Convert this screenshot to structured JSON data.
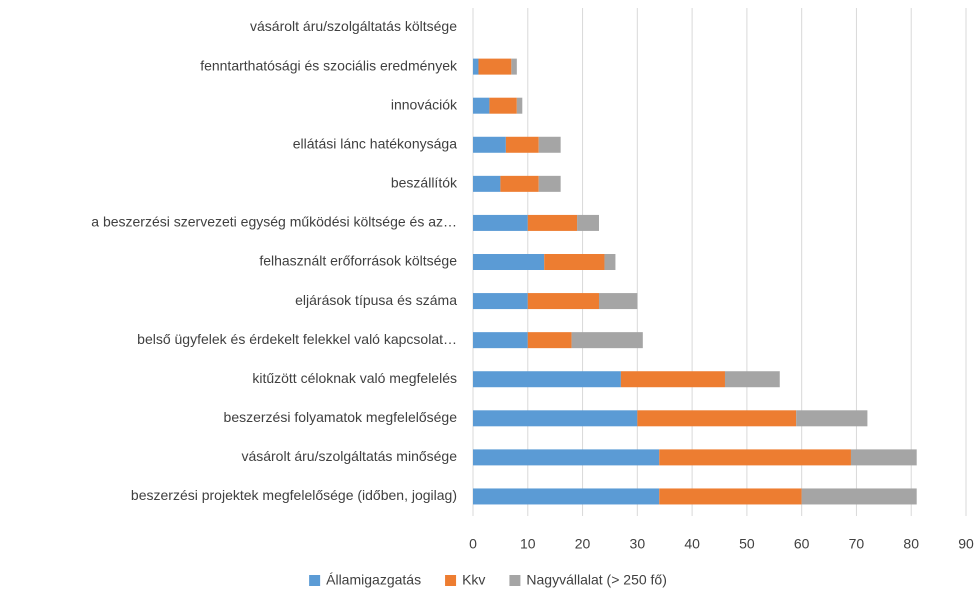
{
  "chart_data": {
    "type": "stacked_barh",
    "categories": [
      "vásárolt áru/szolgáltatás költsége",
      "fenntarthatósági és szociális eredmények",
      "innovációk",
      "ellátási lánc hatékonysága",
      "beszállítók",
      "a beszerzési szervezeti egység működési költsége és az…",
      "felhasznált erőforrások költsége",
      "eljárások típusa és száma",
      "belső ügyfelek és érdekelt felekkel való kapcsolat…",
      "kitűzött céloknak való megfelelés",
      "beszerzési folyamatok megfelelősége",
      "vásárolt áru/szolgáltatás minősége",
      "beszerzési projektek megfelelősége (időben, jogilag)"
    ],
    "series": [
      {
        "name": "Államigazgatás",
        "color": "#5b9bd5",
        "values": [
          0,
          1,
          3,
          6,
          5,
          10,
          13,
          10,
          10,
          27,
          30,
          34,
          34
        ]
      },
      {
        "name": "Kkv",
        "color": "#ed7d31",
        "values": [
          0,
          6,
          5,
          6,
          7,
          9,
          11,
          13,
          8,
          19,
          29,
          35,
          26
        ]
      },
      {
        "name": "Nagyvállalat (> 250 fő)",
        "color": "#a5a5a5",
        "values": [
          0,
          1,
          1,
          4,
          4,
          4,
          2,
          7,
          13,
          10,
          13,
          12,
          21
        ]
      }
    ],
    "xlim": [
      0,
      90
    ],
    "xticks": [
      0,
      10,
      20,
      30,
      40,
      50,
      60,
      70,
      80,
      90
    ],
    "grid": true,
    "legend": "bottom"
  }
}
